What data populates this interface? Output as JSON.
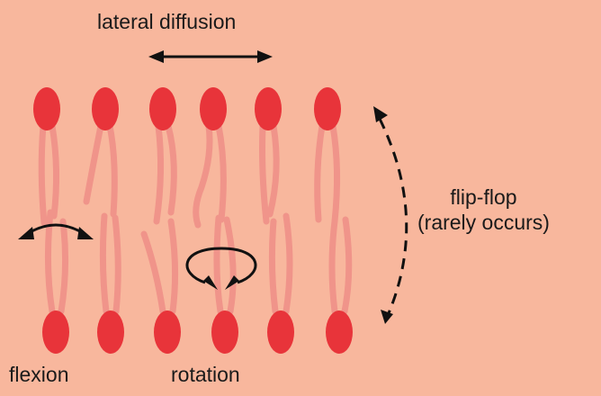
{
  "labels": {
    "lateral_diffusion": "lateral diffusion",
    "flip_flop": "flip-flop",
    "flip_flop_note": "(rarely occurs)",
    "flexion": "flexion",
    "rotation": "rotation"
  },
  "colors": {
    "background": "#f8b79d",
    "head": "#e8343a",
    "tail": "#f0948a",
    "arrow": "#111111"
  },
  "structure": {
    "top_leaflet_lipids": 6,
    "bottom_leaflet_lipids": 6
  }
}
